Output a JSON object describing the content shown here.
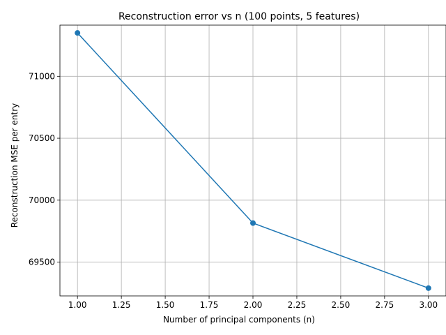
{
  "chart_data": {
    "type": "line",
    "title": "Reconstruction error vs n (100 points, 5 features)",
    "xlabel": "Number of principal components (n)",
    "ylabel": "Reconstruction MSE per entry",
    "x": [
      1,
      2,
      3
    ],
    "series": [
      {
        "values": [
          71350,
          69815,
          69290
        ],
        "color": "#1f77b4",
        "marker": "circle"
      }
    ],
    "xlim": [
      0.9,
      3.1
    ],
    "ylim": [
      69227,
      71413
    ],
    "xticks": [
      1.0,
      1.25,
      1.5,
      1.75,
      2.0,
      2.25,
      2.5,
      2.75,
      3.0
    ],
    "xtick_labels": [
      "1.00",
      "1.25",
      "1.50",
      "1.75",
      "2.00",
      "2.25",
      "2.50",
      "2.75",
      "3.00"
    ],
    "yticks": [
      69500,
      70000,
      70500,
      71000
    ],
    "ytick_labels": [
      "69500",
      "70000",
      "70500",
      "71000"
    ],
    "grid": true
  }
}
